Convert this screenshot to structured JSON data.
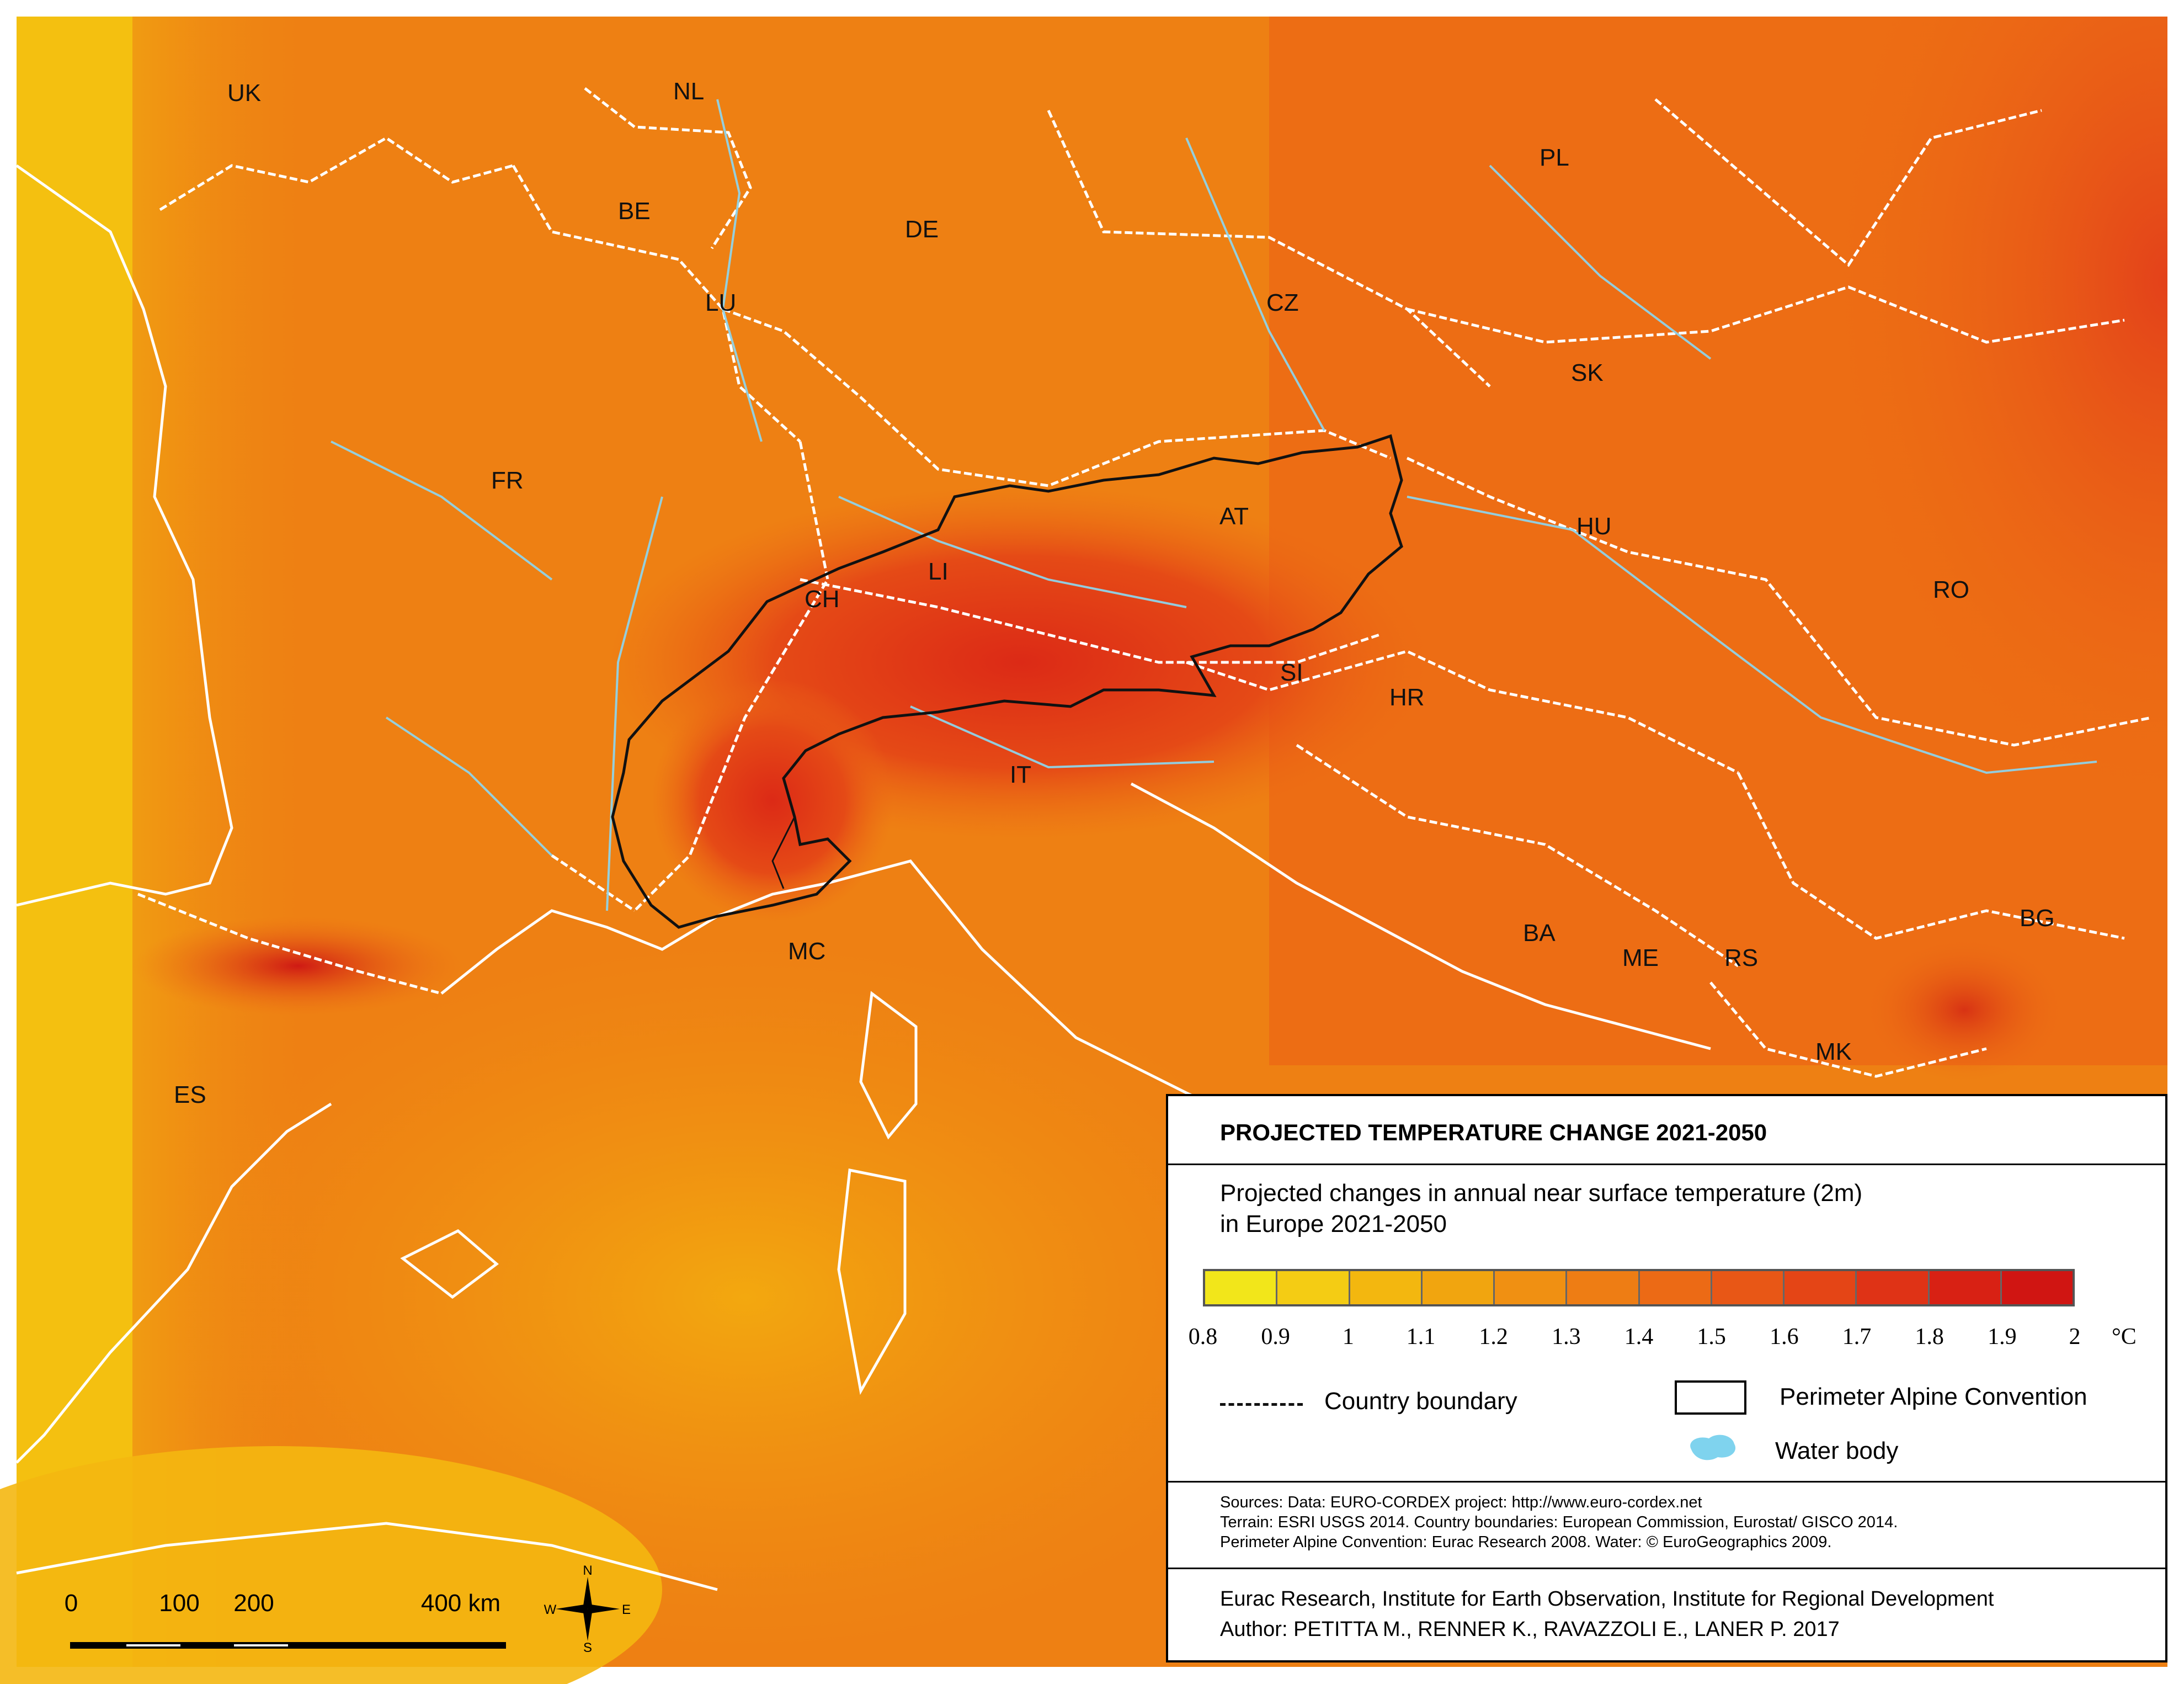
{
  "map": {
    "country_labels": [
      {
        "code": "UK"
      },
      {
        "code": "NL"
      },
      {
        "code": "BE"
      },
      {
        "code": "LU"
      },
      {
        "code": "DE"
      },
      {
        "code": "PL"
      },
      {
        "code": "CZ"
      },
      {
        "code": "SK"
      },
      {
        "code": "FR"
      },
      {
        "code": "AT"
      },
      {
        "code": "HU"
      },
      {
        "code": "RO"
      },
      {
        "code": "LI"
      },
      {
        "code": "CH"
      },
      {
        "code": "SI"
      },
      {
        "code": "HR"
      },
      {
        "code": "IT"
      },
      {
        "code": "MC"
      },
      {
        "code": "BA"
      },
      {
        "code": "ME"
      },
      {
        "code": "RS"
      },
      {
        "code": "BG"
      },
      {
        "code": "ES"
      },
      {
        "code": "MK"
      }
    ],
    "scale_bar": {
      "labels": [
        "0",
        "100",
        "200",
        "400 km"
      ],
      "values_km": [
        0,
        100,
        200,
        400
      ]
    },
    "compass": {
      "n": "N",
      "s": "S",
      "e": "E",
      "w": "W"
    }
  },
  "legend": {
    "title": "PROJECTED TEMPERATURE CHANGE 2021-2050",
    "subtitle_line1": "Projected changes in annual near surface temperature (2m)",
    "subtitle_line2": "in Europe 2021-2050",
    "ramp_colors": [
      "#f2e61a",
      "#f4cc14",
      "#f3b70f",
      "#f1a50f",
      "#f09012",
      "#ee7d14",
      "#ec6a15",
      "#e85716",
      "#e44516",
      "#df3316",
      "#d82114",
      "#d01512"
    ],
    "tick_labels": [
      "0.8",
      "0.9",
      "1",
      "1.1",
      "1.2",
      "1.3",
      "1.4",
      "1.5",
      "1.6",
      "1.7",
      "1.8",
      "1.9",
      "2"
    ],
    "unit": "°C",
    "country_boundary_label": "Country boundary",
    "perimeter_label": "Perimeter Alpine Convention",
    "water_label": "Water body",
    "water_color": "#7fd3ee",
    "sources": [
      "Sources: Data: EURO-CORDEX project: http://www.euro-cordex.net",
      "Terrain: ESRI USGS 2014. Country boundaries: European Commission, Eurostat/ GISCO 2014.",
      "Perimeter Alpine Convention: Eurac Research 2008. Water: © EuroGeographics 2009."
    ],
    "credits": [
      "Eurac Research, Institute for Earth Observation, Institute for Regional Development",
      "Author: PETITTA M., RENNER K., RAVAZZOLI E., LANER P. 2017"
    ]
  }
}
